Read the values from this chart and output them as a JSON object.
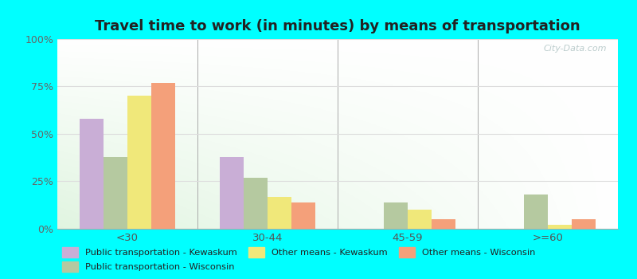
{
  "title": "Travel time to work (in minutes) by means of transportation",
  "categories": [
    "<30",
    "30-44",
    "45-59",
    ">=60"
  ],
  "series": [
    {
      "label": "Public transportation - Kewaskum",
      "color": "#c9aed6",
      "values": [
        58,
        38,
        0,
        0
      ]
    },
    {
      "label": "Public transportation - Wisconsin",
      "color": "#b5c9a0",
      "values": [
        38,
        27,
        14,
        18
      ]
    },
    {
      "label": "Other means - Kewaskum",
      "color": "#f0e87a",
      "values": [
        70,
        17,
        10,
        2
      ]
    },
    {
      "label": "Other means - Wisconsin",
      "color": "#f4a07a",
      "values": [
        77,
        14,
        5,
        5
      ]
    }
  ],
  "ylim": [
    0,
    100
  ],
  "yticks": [
    0,
    25,
    50,
    75,
    100
  ],
  "ytick_labels": [
    "0%",
    "25%",
    "50%",
    "75%",
    "100%"
  ],
  "background_color": "#00ffff",
  "grid_color": "#dddddd",
  "title_fontsize": 13,
  "bar_width": 0.17,
  "watermark": "City-Data.com"
}
